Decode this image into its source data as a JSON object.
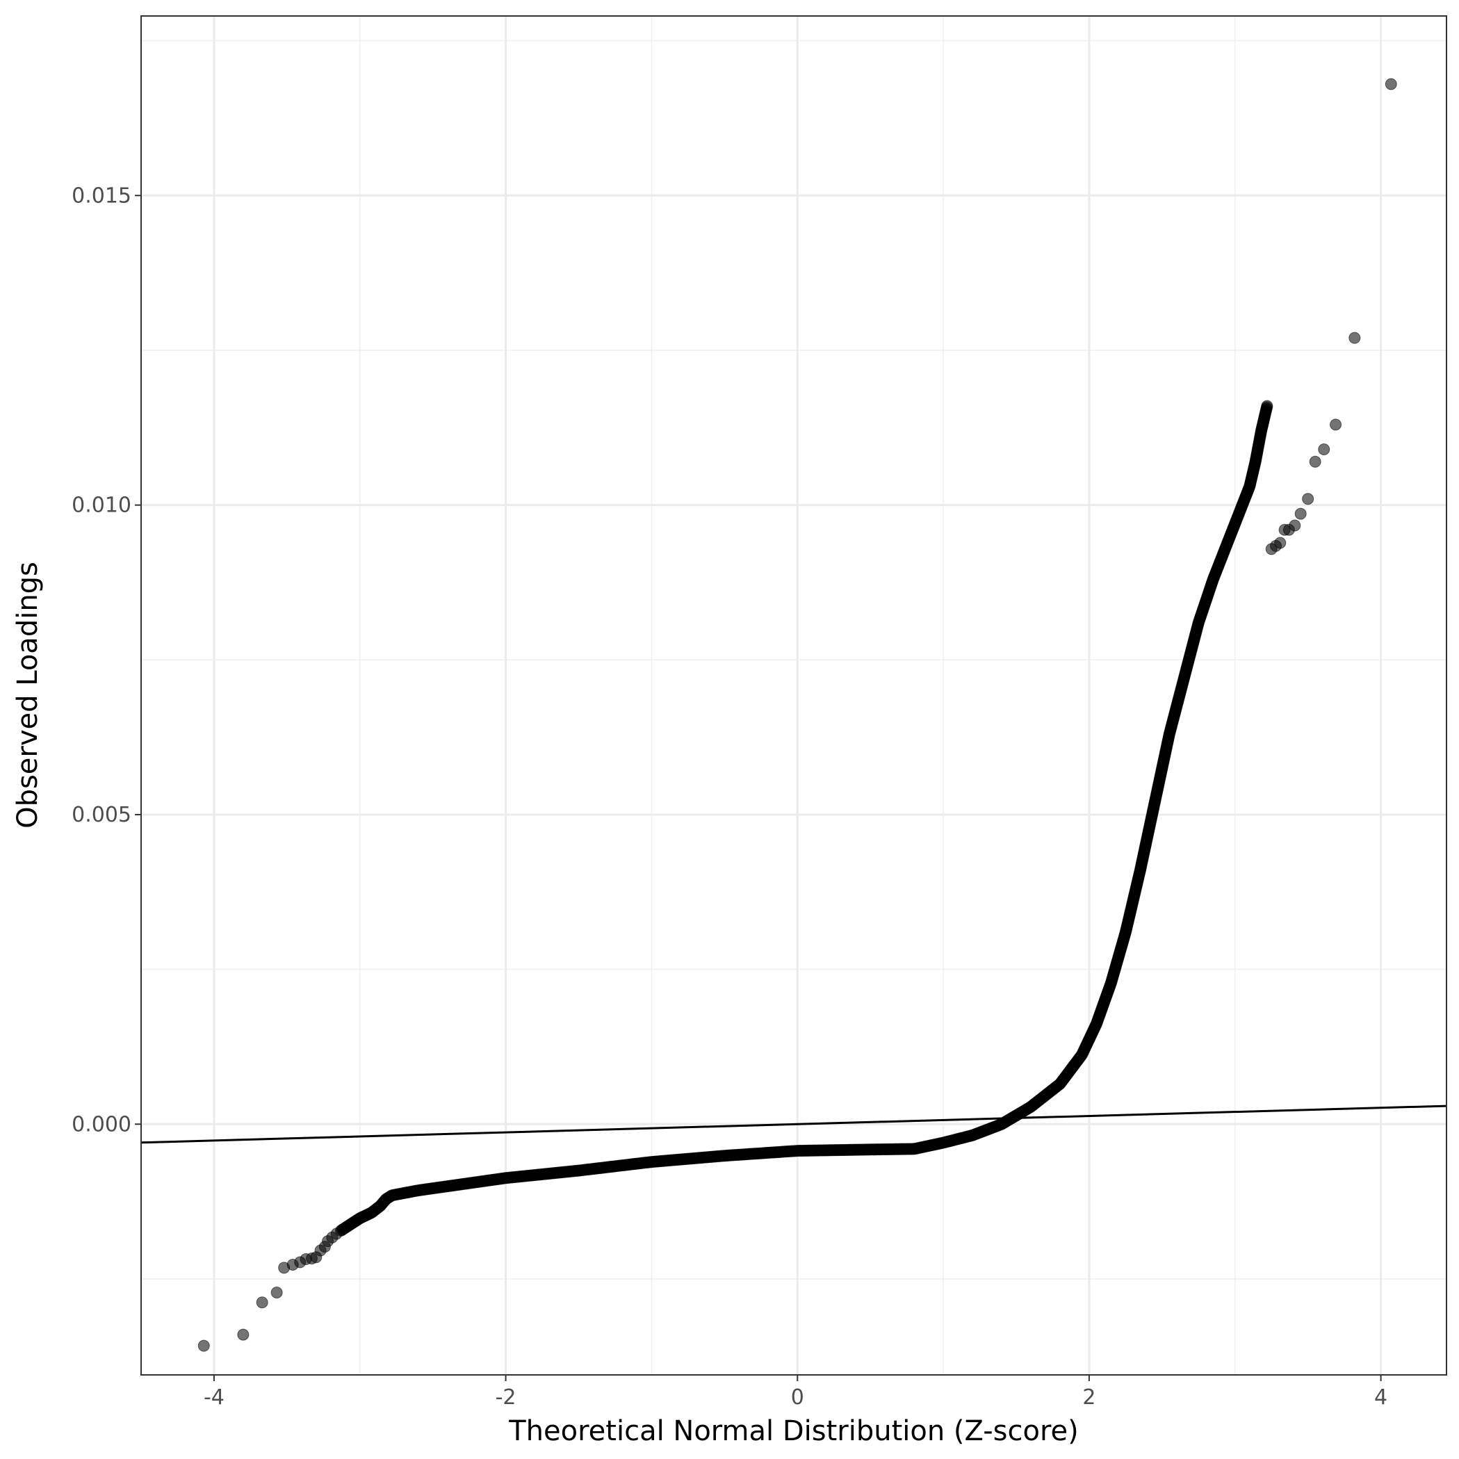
{
  "chart_data": {
    "type": "scatter",
    "title": "",
    "xlabel": "Theoretical Normal Distribution (Z-score)",
    "ylabel": "Observed Loadings",
    "xlim": [
      -4.5,
      4.45
    ],
    "ylim": [
      -0.00405,
      0.0179
    ],
    "x_ticks": [
      -4,
      -2,
      0,
      2,
      4
    ],
    "x_tick_labels": [
      "-4",
      "-2",
      "0",
      "2",
      "4"
    ],
    "y_ticks": [
      0.0,
      0.005,
      0.01,
      0.015
    ],
    "y_tick_labels": [
      "0.000",
      "0.005",
      "0.010",
      "0.015"
    ],
    "grid": true,
    "reference_line": {
      "intercept": 0.0,
      "slope": 6.61e-05
    },
    "outliers": [
      [
        -4.07,
        -0.00358
      ],
      [
        -3.8,
        -0.0034
      ],
      [
        -3.67,
        -0.00288
      ],
      [
        -3.57,
        -0.00272
      ],
      [
        -3.52,
        -0.00232
      ],
      [
        -3.46,
        -0.00227
      ],
      [
        -3.41,
        -0.00223
      ],
      [
        -3.37,
        -0.00218
      ],
      [
        -3.33,
        -0.00217
      ],
      [
        -3.3,
        -0.00215
      ],
      [
        -3.27,
        -0.00204
      ],
      [
        -3.24,
        -0.00198
      ],
      [
        -3.22,
        -0.00189
      ],
      [
        -3.19,
        -0.00183
      ],
      [
        -3.16,
        -0.00177
      ],
      [
        3.25,
        0.00929
      ],
      [
        3.28,
        0.00934
      ],
      [
        3.31,
        0.00939
      ],
      [
        3.34,
        0.0096
      ],
      [
        3.37,
        0.0096
      ],
      [
        3.41,
        0.00967
      ],
      [
        3.45,
        0.00986
      ],
      [
        3.5,
        0.0101
      ],
      [
        3.55,
        0.0107
      ],
      [
        3.61,
        0.0109
      ],
      [
        3.69,
        0.0113
      ],
      [
        3.82,
        0.0127
      ],
      [
        4.07,
        0.0168
      ]
    ],
    "curve_points": [
      [
        -3.13,
        -0.00172
      ],
      [
        -3.0,
        -0.00152
      ],
      [
        -2.92,
        -0.00143
      ],
      [
        -2.86,
        -0.00132
      ],
      [
        -2.82,
        -0.00121
      ],
      [
        -2.78,
        -0.00115
      ],
      [
        -2.6,
        -0.00107
      ],
      [
        -2.3,
        -0.00097
      ],
      [
        -2.0,
        -0.00087
      ],
      [
        -1.5,
        -0.00075
      ],
      [
        -1.0,
        -0.00061
      ],
      [
        -0.5,
        -0.00051
      ],
      [
        0.0,
        -0.00043
      ],
      [
        0.5,
        -0.00041
      ],
      [
        0.8,
        -0.0004
      ],
      [
        1.0,
        -0.0003
      ],
      [
        1.2,
        -0.00018
      ],
      [
        1.4,
        0.0
      ],
      [
        1.6,
        0.00028
      ],
      [
        1.8,
        0.00065
      ],
      [
        1.95,
        0.00112
      ],
      [
        2.05,
        0.00162
      ],
      [
        2.15,
        0.00228
      ],
      [
        2.25,
        0.0031
      ],
      [
        2.35,
        0.0041
      ],
      [
        2.45,
        0.0052
      ],
      [
        2.55,
        0.0063
      ],
      [
        2.65,
        0.0072
      ],
      [
        2.75,
        0.0081
      ],
      [
        2.85,
        0.0088
      ],
      [
        2.95,
        0.0094
      ],
      [
        3.05,
        0.01
      ],
      [
        3.1,
        0.0103
      ],
      [
        3.14,
        0.0107
      ],
      [
        3.18,
        0.0112
      ],
      [
        3.2,
        0.0114
      ],
      [
        3.22,
        0.0116
      ]
    ]
  }
}
